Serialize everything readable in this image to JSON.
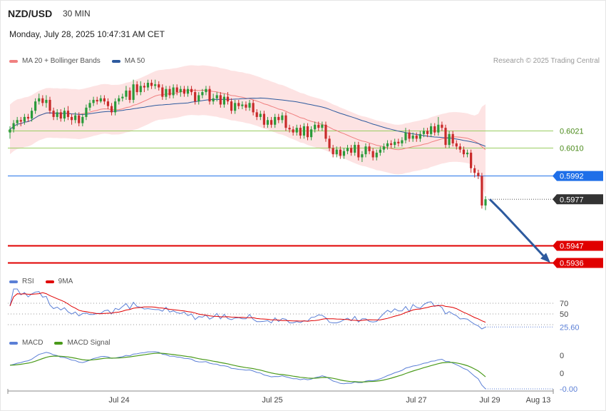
{
  "header": {
    "symbol": "NZD/USD",
    "interval": "30 MIN",
    "timestamp": "Monday, July 28, 2025 10:47:31 AM CET",
    "attribution": "Research © 2025 Trading Central"
  },
  "legend": {
    "main": [
      {
        "label": "MA 20 + Bollinger Bands",
        "color": "#f08080"
      },
      {
        "label": "MA 50",
        "color": "#2d5a9e"
      }
    ],
    "rsi": [
      {
        "label": "RSI",
        "color": "#5b7fd6"
      },
      {
        "label": "9MA",
        "color": "#e00000"
      }
    ],
    "macd": [
      {
        "label": "MACD",
        "color": "#5b7fd6"
      },
      {
        "label": "MACD Signal",
        "color": "#4a9a1a"
      }
    ]
  },
  "colors": {
    "up": "#2a9a3a",
    "down": "#c92a2a",
    "band_fill": "#fde3e3",
    "ma20": "#f08080",
    "ma50": "#2d5a9e",
    "support_line": "#e00000",
    "current_level": "#1f6fe8",
    "green_level": "#9acd62",
    "arrow": "#2d5a9e",
    "price_tag": "#333333"
  },
  "chart_data": [
    {
      "type": "candlestick",
      "name": "price",
      "x_ticks": [
        "Jul 24",
        "Jul 25",
        "Jul 27",
        "Jul 29",
        "Aug 13"
      ],
      "ylim": [
        0.592,
        0.607
      ],
      "levels": [
        {
          "label": "0.6021",
          "value": 0.6021,
          "kind": "green"
        },
        {
          "label": "0.6010",
          "value": 0.601,
          "kind": "green"
        },
        {
          "label": "0.5992",
          "value": 0.5992,
          "kind": "current"
        },
        {
          "label": "0.5977",
          "value": 0.5977,
          "kind": "last"
        },
        {
          "label": "0.5947",
          "value": 0.5947,
          "kind": "support"
        },
        {
          "label": "0.5936",
          "value": 0.5936,
          "kind": "support"
        }
      ],
      "forecast_arrow": {
        "from": 0.5977,
        "to": 0.5937
      },
      "candles": [
        [
          0.602,
          0.6022,
          0.6016,
          0.6024
        ],
        [
          0.6022,
          0.6026,
          0.602,
          0.6028
        ],
        [
          0.6026,
          0.6028,
          0.6024,
          0.603
        ],
        [
          0.6028,
          0.6027,
          0.6024,
          0.603
        ],
        [
          0.6027,
          0.603,
          0.6025,
          0.6032
        ],
        [
          0.603,
          0.6029,
          0.6027,
          0.6032
        ],
        [
          0.6029,
          0.6034,
          0.6027,
          0.6036
        ],
        [
          0.6034,
          0.604,
          0.6032,
          0.6042
        ],
        [
          0.604,
          0.6042,
          0.6038,
          0.6045
        ],
        [
          0.6042,
          0.6039,
          0.6037,
          0.6044
        ],
        [
          0.6039,
          0.6041,
          0.6036,
          0.6044
        ],
        [
          0.6041,
          0.6034,
          0.6032,
          0.6043
        ],
        [
          0.6034,
          0.603,
          0.6028,
          0.6036
        ],
        [
          0.603,
          0.6033,
          0.6028,
          0.6035
        ],
        [
          0.6033,
          0.6029,
          0.6027,
          0.6035
        ],
        [
          0.6029,
          0.6034,
          0.6027,
          0.6036
        ],
        [
          0.6034,
          0.603,
          0.6028,
          0.6037
        ],
        [
          0.603,
          0.6028,
          0.6025,
          0.6032
        ],
        [
          0.6028,
          0.6031,
          0.6026,
          0.6033
        ],
        [
          0.6031,
          0.6026,
          0.6024,
          0.6033
        ],
        [
          0.6026,
          0.603,
          0.6024,
          0.6032
        ],
        [
          0.603,
          0.6036,
          0.6028,
          0.6038
        ],
        [
          0.6036,
          0.6039,
          0.6034,
          0.6041
        ],
        [
          0.6039,
          0.6041,
          0.6037,
          0.6043
        ],
        [
          0.6041,
          0.604,
          0.6038,
          0.6043
        ],
        [
          0.604,
          0.6042,
          0.6039,
          0.6044
        ],
        [
          0.6042,
          0.604,
          0.6038,
          0.6044
        ],
        [
          0.604,
          0.6037,
          0.6035,
          0.6042
        ],
        [
          0.6037,
          0.6033,
          0.6031,
          0.6039
        ],
        [
          0.6033,
          0.604,
          0.6031,
          0.6042
        ],
        [
          0.604,
          0.6042,
          0.6038,
          0.6044
        ],
        [
          0.6042,
          0.6043,
          0.604,
          0.6045
        ],
        [
          0.6043,
          0.6047,
          0.6041,
          0.605
        ],
        [
          0.6047,
          0.6041,
          0.6039,
          0.6049
        ],
        [
          0.6041,
          0.6051,
          0.6039,
          0.6054
        ],
        [
          0.6051,
          0.6046,
          0.6044,
          0.6053
        ],
        [
          0.6046,
          0.605,
          0.6044,
          0.6053
        ],
        [
          0.605,
          0.6049,
          0.6046,
          0.6052
        ],
        [
          0.6049,
          0.6052,
          0.6047,
          0.6054
        ],
        [
          0.6052,
          0.605,
          0.6048,
          0.6054
        ],
        [
          0.605,
          0.6051,
          0.6048,
          0.6054
        ],
        [
          0.6051,
          0.6049,
          0.6047,
          0.6053
        ],
        [
          0.6049,
          0.6043,
          0.6041,
          0.6051
        ],
        [
          0.6043,
          0.6048,
          0.6041,
          0.605
        ],
        [
          0.6048,
          0.6044,
          0.6042,
          0.605
        ],
        [
          0.6044,
          0.6049,
          0.6042,
          0.6051
        ],
        [
          0.6049,
          0.6046,
          0.6044,
          0.6051
        ],
        [
          0.6046,
          0.6048,
          0.6043,
          0.605
        ],
        [
          0.6048,
          0.6045,
          0.6043,
          0.605
        ],
        [
          0.6045,
          0.6048,
          0.6043,
          0.605
        ],
        [
          0.6048,
          0.6046,
          0.6044,
          0.605
        ],
        [
          0.6046,
          0.604,
          0.6038,
          0.6048
        ],
        [
          0.604,
          0.6044,
          0.6038,
          0.6046
        ],
        [
          0.6044,
          0.6046,
          0.6042,
          0.6048
        ],
        [
          0.6046,
          0.6048,
          0.6044,
          0.605
        ],
        [
          0.6048,
          0.604,
          0.6038,
          0.605
        ],
        [
          0.604,
          0.6042,
          0.6038,
          0.6045
        ],
        [
          0.6042,
          0.6044,
          0.604,
          0.6046
        ],
        [
          0.6044,
          0.6038,
          0.6036,
          0.6046
        ],
        [
          0.6038,
          0.6043,
          0.6036,
          0.6045
        ],
        [
          0.6043,
          0.604,
          0.6038,
          0.6046
        ],
        [
          0.604,
          0.6034,
          0.6032,
          0.6042
        ],
        [
          0.6034,
          0.6039,
          0.6032,
          0.6041
        ],
        [
          0.6039,
          0.6037,
          0.6035,
          0.6041
        ],
        [
          0.6037,
          0.6038,
          0.6035,
          0.604
        ],
        [
          0.6038,
          0.6036,
          0.6034,
          0.604
        ],
        [
          0.6036,
          0.6039,
          0.6034,
          0.6041
        ],
        [
          0.6039,
          0.6033,
          0.6031,
          0.6041
        ],
        [
          0.6033,
          0.603,
          0.6028,
          0.6035
        ],
        [
          0.603,
          0.6032,
          0.6028,
          0.6034
        ],
        [
          0.6032,
          0.6025,
          0.6023,
          0.6034
        ],
        [
          0.6025,
          0.6028,
          0.6023,
          0.603
        ],
        [
          0.6028,
          0.6025,
          0.6023,
          0.603
        ],
        [
          0.6025,
          0.603,
          0.6023,
          0.6032
        ],
        [
          0.603,
          0.6028,
          0.6026,
          0.6032
        ],
        [
          0.6028,
          0.6031,
          0.6026,
          0.6033
        ],
        [
          0.6031,
          0.6023,
          0.6021,
          0.6033
        ],
        [
          0.6023,
          0.6022,
          0.602,
          0.6025
        ],
        [
          0.6022,
          0.602,
          0.6018,
          0.6024
        ],
        [
          0.602,
          0.6023,
          0.6018,
          0.6025
        ],
        [
          0.6023,
          0.6018,
          0.6016,
          0.6025
        ],
        [
          0.6018,
          0.6024,
          0.6016,
          0.6026
        ],
        [
          0.6024,
          0.6017,
          0.6015,
          0.6026
        ],
        [
          0.6017,
          0.6022,
          0.6015,
          0.6024
        ],
        [
          0.6022,
          0.6025,
          0.602,
          0.6027
        ],
        [
          0.6025,
          0.6023,
          0.6021,
          0.6027
        ],
        [
          0.6023,
          0.6025,
          0.6021,
          0.6027
        ],
        [
          0.6025,
          0.6016,
          0.6014,
          0.6027
        ],
        [
          0.6016,
          0.601,
          0.6008,
          0.6018
        ],
        [
          0.601,
          0.6006,
          0.6004,
          0.6012
        ],
        [
          0.6006,
          0.6009,
          0.6004,
          0.6011
        ],
        [
          0.6009,
          0.6005,
          0.6003,
          0.6011
        ],
        [
          0.6005,
          0.6008,
          0.6003,
          0.601
        ],
        [
          0.6008,
          0.601,
          0.6006,
          0.6012
        ],
        [
          0.601,
          0.6007,
          0.6005,
          0.6012
        ],
        [
          0.6007,
          0.6012,
          0.6005,
          0.6014
        ],
        [
          0.6012,
          0.6004,
          0.6002,
          0.6014
        ],
        [
          0.6004,
          0.6006,
          0.6001,
          0.6008
        ],
        [
          0.6006,
          0.6011,
          0.6004,
          0.6013
        ],
        [
          0.6011,
          0.6008,
          0.6006,
          0.6013
        ],
        [
          0.6008,
          0.6004,
          0.6002,
          0.601
        ],
        [
          0.6004,
          0.6007,
          0.6002,
          0.6009
        ],
        [
          0.6007,
          0.6009,
          0.6005,
          0.6011
        ],
        [
          0.6009,
          0.6011,
          0.6007,
          0.6013
        ],
        [
          0.6011,
          0.6013,
          0.6009,
          0.6015
        ],
        [
          0.6013,
          0.6012,
          0.601,
          0.6015
        ],
        [
          0.6012,
          0.6014,
          0.601,
          0.6016
        ],
        [
          0.6014,
          0.6013,
          0.6011,
          0.6016
        ],
        [
          0.6013,
          0.6015,
          0.6011,
          0.6017
        ],
        [
          0.6015,
          0.602,
          0.6013,
          0.6023
        ],
        [
          0.602,
          0.6016,
          0.6014,
          0.6022
        ],
        [
          0.6016,
          0.6018,
          0.6014,
          0.602
        ],
        [
          0.6018,
          0.6016,
          0.6014,
          0.602
        ],
        [
          0.6016,
          0.6019,
          0.6014,
          0.6021
        ],
        [
          0.6019,
          0.6021,
          0.6017,
          0.6023
        ],
        [
          0.6021,
          0.6019,
          0.6017,
          0.6023
        ],
        [
          0.6019,
          0.6024,
          0.6017,
          0.6026
        ],
        [
          0.6024,
          0.602,
          0.6018,
          0.6026
        ],
        [
          0.602,
          0.6025,
          0.6018,
          0.603
        ],
        [
          0.6025,
          0.6023,
          0.6021,
          0.6027
        ],
        [
          0.6023,
          0.6012,
          0.601,
          0.6025
        ],
        [
          0.6012,
          0.6019,
          0.601,
          0.6021
        ],
        [
          0.6019,
          0.6013,
          0.6011,
          0.6021
        ],
        [
          0.6013,
          0.6011,
          0.6009,
          0.6015
        ],
        [
          0.6011,
          0.6009,
          0.6007,
          0.6013
        ],
        [
          0.6009,
          0.6006,
          0.6004,
          0.6011
        ],
        [
          0.6006,
          0.6007,
          0.6004,
          0.6009
        ],
        [
          0.6007,
          0.5997,
          0.5994,
          0.6009
        ],
        [
          0.5997,
          0.5994,
          0.5991,
          0.5999
        ],
        [
          0.5994,
          0.5992,
          0.599,
          0.5996
        ],
        [
          0.5992,
          0.5973,
          0.5971,
          0.5994
        ],
        [
          0.5973,
          0.5977,
          0.597,
          0.5979
        ]
      ]
    },
    {
      "type": "line",
      "name": "RSI",
      "y_ticks": [
        "70",
        "50"
      ],
      "last_value": "25.60"
    },
    {
      "type": "line",
      "name": "MACD",
      "y_ticks": [
        "0",
        "0"
      ],
      "last_value": "-0.00"
    }
  ]
}
